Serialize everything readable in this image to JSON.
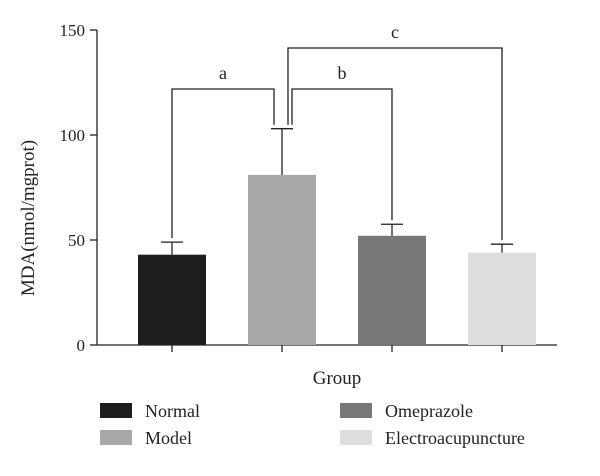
{
  "chart_data": {
    "type": "bar",
    "title": "",
    "xlabel": "Group",
    "ylabel": "MDA(nmol/mgprot)",
    "ylim": [
      0,
      150
    ],
    "yticks": [
      0,
      50,
      100,
      150
    ],
    "grid": false,
    "legend_position": "bottom",
    "categories": [
      "Normal",
      "Model",
      "Omeprazole",
      "Electroacupuncture"
    ],
    "values": [
      43,
      81,
      52,
      44
    ],
    "errors": [
      6,
      22,
      5.5,
      4
    ],
    "colors": [
      "#1e1e1e",
      "#a8a8a8",
      "#777777",
      "#dedede"
    ],
    "significance": [
      {
        "label": "a",
        "from": "Normal",
        "to": "Model"
      },
      {
        "label": "b",
        "from": "Model",
        "to": "Omeprazole"
      },
      {
        "label": "c",
        "from": "Model",
        "to": "Electroacupuncture"
      }
    ]
  }
}
